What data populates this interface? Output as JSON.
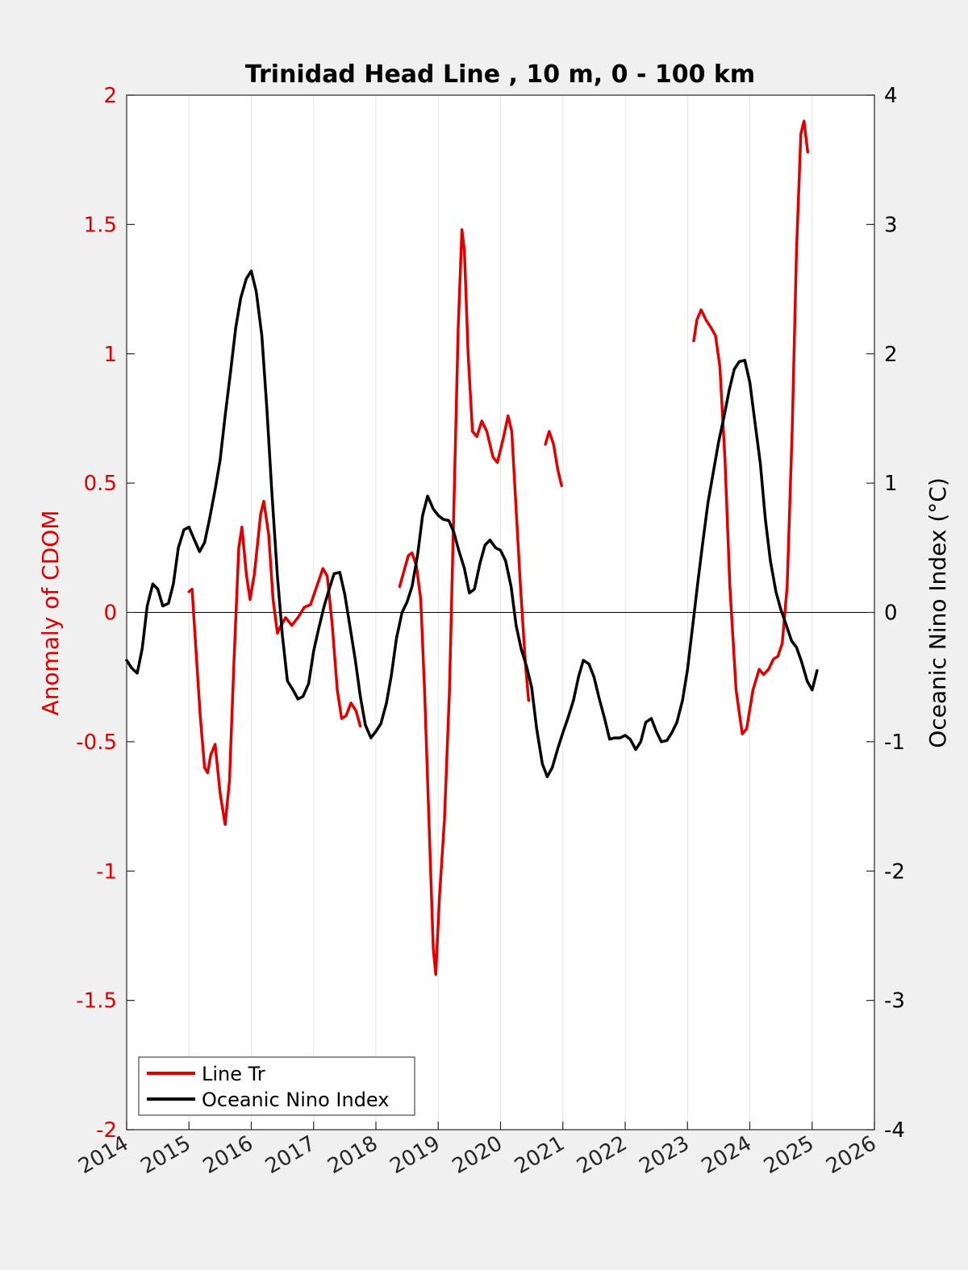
{
  "chart_data": {
    "type": "line",
    "title": "Trinidad Head Line , 10 m, 0 - 100 km",
    "xlabel": "",
    "xlim": [
      2014,
      2026
    ],
    "x_ticks": [
      "2014",
      "2015",
      "2016",
      "2017",
      "2018",
      "2019",
      "2020",
      "2021",
      "2022",
      "2023",
      "2024",
      "2025",
      "2026"
    ],
    "ylabel_left": "Anomaly of CDOM",
    "ylim_left": [
      -2,
      2
    ],
    "y_ticks_left": [
      "-2",
      "-1.5",
      "-1",
      "-0.5",
      "0",
      "0.5",
      "1",
      "1.5",
      "2"
    ],
    "ylabel_right": "Oceanic Nino Index (°C)",
    "ylim_right": [
      -4,
      4
    ],
    "y_ticks_right": [
      "-4",
      "-3",
      "-2",
      "-1",
      "0",
      "1",
      "2",
      "3",
      "4"
    ],
    "grid": "vertical gridlines at year ticks; horizontal zero line",
    "legend_position": "bottom-left",
    "colors": {
      "cdom": "#e00000",
      "oni": "#000000",
      "left_axis": "#e00000",
      "right_axis": "#000000",
      "background": "#f0f0f0",
      "plot_bg": "#ffffff"
    },
    "series": [
      {
        "name": "Line Tr",
        "axis": "left",
        "color": "#e00000",
        "segments": [
          [
            [
              2015.0,
              0.08
            ],
            [
              2015.05,
              0.09
            ],
            [
              2015.1,
              -0.1
            ],
            [
              2015.18,
              -0.4
            ],
            [
              2015.25,
              -0.6
            ],
            [
              2015.3,
              -0.62
            ],
            [
              2015.35,
              -0.55
            ],
            [
              2015.42,
              -0.51
            ],
            [
              2015.5,
              -0.7
            ],
            [
              2015.58,
              -0.82
            ],
            [
              2015.65,
              -0.65
            ],
            [
              2015.72,
              -0.2
            ],
            [
              2015.8,
              0.25
            ],
            [
              2015.85,
              0.33
            ],
            [
              2015.92,
              0.15
            ],
            [
              2015.98,
              0.05
            ],
            [
              2016.05,
              0.15
            ],
            [
              2016.15,
              0.38
            ],
            [
              2016.2,
              0.43
            ],
            [
              2016.28,
              0.3
            ],
            [
              2016.35,
              0.05
            ],
            [
              2016.42,
              -0.08
            ],
            [
              2016.48,
              -0.05
            ],
            [
              2016.55,
              -0.02
            ],
            [
              2016.65,
              -0.05
            ],
            [
              2016.75,
              -0.02
            ],
            [
              2016.85,
              0.02
            ],
            [
              2016.95,
              0.03
            ],
            [
              2017.05,
              0.1
            ],
            [
              2017.15,
              0.17
            ],
            [
              2017.22,
              0.14
            ],
            [
              2017.3,
              -0.05
            ],
            [
              2017.38,
              -0.3
            ],
            [
              2017.45,
              -0.41
            ],
            [
              2017.52,
              -0.4
            ],
            [
              2017.6,
              -0.35
            ],
            [
              2017.68,
              -0.38
            ],
            [
              2017.75,
              -0.44
            ]
          ],
          [
            [
              2018.38,
              0.1
            ],
            [
              2018.45,
              0.16
            ],
            [
              2018.52,
              0.22
            ],
            [
              2018.58,
              0.23
            ],
            [
              2018.65,
              0.18
            ],
            [
              2018.72,
              0.05
            ],
            [
              2018.78,
              -0.3
            ],
            [
              2018.85,
              -0.8
            ],
            [
              2018.92,
              -1.3
            ],
            [
              2018.96,
              -1.4
            ],
            [
              2019.02,
              -1.1
            ],
            [
              2019.1,
              -0.8
            ],
            [
              2019.18,
              -0.3
            ],
            [
              2019.25,
              0.4
            ],
            [
              2019.32,
              1.1
            ],
            [
              2019.38,
              1.48
            ],
            [
              2019.42,
              1.4
            ],
            [
              2019.48,
              1.0
            ],
            [
              2019.55,
              0.7
            ],
            [
              2019.62,
              0.68
            ],
            [
              2019.7,
              0.74
            ],
            [
              2019.78,
              0.7
            ],
            [
              2019.88,
              0.6
            ],
            [
              2019.95,
              0.58
            ],
            [
              2020.05,
              0.68
            ],
            [
              2020.12,
              0.76
            ],
            [
              2020.18,
              0.7
            ],
            [
              2020.25,
              0.4
            ],
            [
              2020.32,
              0.1
            ],
            [
              2020.4,
              -0.2
            ],
            [
              2020.45,
              -0.34
            ]
          ],
          [
            [
              2020.72,
              0.65
            ],
            [
              2020.78,
              0.7
            ],
            [
              2020.85,
              0.65
            ],
            [
              2020.92,
              0.55
            ],
            [
              2020.98,
              0.49
            ]
          ],
          [
            [
              2023.1,
              1.05
            ],
            [
              2023.15,
              1.13
            ],
            [
              2023.22,
              1.17
            ],
            [
              2023.3,
              1.13
            ],
            [
              2023.38,
              1.1
            ],
            [
              2023.45,
              1.07
            ],
            [
              2023.52,
              0.95
            ],
            [
              2023.6,
              0.6
            ],
            [
              2023.68,
              0.1
            ],
            [
              2023.78,
              -0.3
            ],
            [
              2023.88,
              -0.47
            ],
            [
              2023.95,
              -0.45
            ],
            [
              2024.05,
              -0.3
            ],
            [
              2024.15,
              -0.22
            ],
            [
              2024.22,
              -0.24
            ],
            [
              2024.3,
              -0.22
            ],
            [
              2024.38,
              -0.18
            ],
            [
              2024.45,
              -0.17
            ],
            [
              2024.52,
              -0.12
            ],
            [
              2024.6,
              0.1
            ],
            [
              2024.68,
              0.7
            ],
            [
              2024.75,
              1.4
            ],
            [
              2024.82,
              1.85
            ],
            [
              2024.87,
              1.9
            ],
            [
              2024.93,
              1.78
            ]
          ]
        ]
      },
      {
        "name": "Oceanic Nino Index",
        "axis": "right",
        "color": "#000000",
        "segments": [
          [
            [
              2014.0,
              -0.37
            ],
            [
              2014.08,
              -0.43
            ],
            [
              2014.17,
              -0.47
            ],
            [
              2014.25,
              -0.28
            ],
            [
              2014.33,
              0.05
            ],
            [
              2014.42,
              0.22
            ],
            [
              2014.5,
              0.18
            ],
            [
              2014.58,
              0.05
            ],
            [
              2014.67,
              0.07
            ],
            [
              2014.75,
              0.22
            ],
            [
              2014.83,
              0.5
            ],
            [
              2014.92,
              0.64
            ],
            [
              2015.0,
              0.66
            ],
            [
              2015.08,
              0.57
            ],
            [
              2015.17,
              0.47
            ],
            [
              2015.25,
              0.54
            ],
            [
              2015.33,
              0.72
            ],
            [
              2015.42,
              0.95
            ],
            [
              2015.5,
              1.18
            ],
            [
              2015.58,
              1.52
            ],
            [
              2015.67,
              1.87
            ],
            [
              2015.75,
              2.2
            ],
            [
              2015.83,
              2.43
            ],
            [
              2015.92,
              2.58
            ],
            [
              2016.0,
              2.64
            ],
            [
              2016.08,
              2.48
            ],
            [
              2016.17,
              2.14
            ],
            [
              2016.25,
              1.58
            ],
            [
              2016.33,
              0.93
            ],
            [
              2016.42,
              0.28
            ],
            [
              2016.5,
              -0.18
            ],
            [
              2016.58,
              -0.53
            ],
            [
              2016.67,
              -0.6
            ],
            [
              2016.75,
              -0.67
            ],
            [
              2016.83,
              -0.65
            ],
            [
              2016.92,
              -0.55
            ],
            [
              2017.0,
              -0.3
            ],
            [
              2017.08,
              -0.13
            ],
            [
              2017.17,
              0.05
            ],
            [
              2017.25,
              0.18
            ],
            [
              2017.33,
              0.3
            ],
            [
              2017.42,
              0.31
            ],
            [
              2017.5,
              0.14
            ],
            [
              2017.58,
              -0.1
            ],
            [
              2017.67,
              -0.37
            ],
            [
              2017.75,
              -0.65
            ],
            [
              2017.83,
              -0.87
            ],
            [
              2017.92,
              -0.97
            ],
            [
              2018.0,
              -0.92
            ],
            [
              2018.08,
              -0.86
            ],
            [
              2018.17,
              -0.7
            ],
            [
              2018.25,
              -0.48
            ],
            [
              2018.33,
              -0.2
            ],
            [
              2018.42,
              0.0
            ],
            [
              2018.5,
              0.08
            ],
            [
              2018.58,
              0.2
            ],
            [
              2018.67,
              0.45
            ],
            [
              2018.75,
              0.75
            ],
            [
              2018.83,
              0.9
            ],
            [
              2018.92,
              0.8
            ],
            [
              2019.0,
              0.75
            ],
            [
              2019.08,
              0.72
            ],
            [
              2019.17,
              0.71
            ],
            [
              2019.25,
              0.62
            ],
            [
              2019.33,
              0.48
            ],
            [
              2019.42,
              0.34
            ],
            [
              2019.5,
              0.15
            ],
            [
              2019.58,
              0.18
            ],
            [
              2019.67,
              0.38
            ],
            [
              2019.75,
              0.52
            ],
            [
              2019.83,
              0.56
            ],
            [
              2019.92,
              0.5
            ],
            [
              2020.0,
              0.48
            ],
            [
              2020.08,
              0.4
            ],
            [
              2020.17,
              0.2
            ],
            [
              2020.25,
              -0.1
            ],
            [
              2020.33,
              -0.28
            ],
            [
              2020.42,
              -0.42
            ],
            [
              2020.5,
              -0.58
            ],
            [
              2020.58,
              -0.9
            ],
            [
              2020.67,
              -1.17
            ],
            [
              2020.75,
              -1.27
            ],
            [
              2020.83,
              -1.2
            ],
            [
              2020.92,
              -1.05
            ],
            [
              2021.0,
              -0.93
            ],
            [
              2021.08,
              -0.82
            ],
            [
              2021.17,
              -0.68
            ],
            [
              2021.25,
              -0.5
            ],
            [
              2021.33,
              -0.37
            ],
            [
              2021.42,
              -0.4
            ],
            [
              2021.5,
              -0.5
            ],
            [
              2021.58,
              -0.66
            ],
            [
              2021.67,
              -0.82
            ],
            [
              2021.75,
              -0.98
            ],
            [
              2021.83,
              -0.97
            ],
            [
              2021.92,
              -0.97
            ],
            [
              2022.0,
              -0.95
            ],
            [
              2022.08,
              -0.98
            ],
            [
              2022.17,
              -1.06
            ],
            [
              2022.25,
              -1.0
            ],
            [
              2022.33,
              -0.85
            ],
            [
              2022.42,
              -0.82
            ],
            [
              2022.5,
              -0.92
            ],
            [
              2022.58,
              -1.0
            ],
            [
              2022.67,
              -0.99
            ],
            [
              2022.75,
              -0.93
            ],
            [
              2022.83,
              -0.85
            ],
            [
              2022.92,
              -0.68
            ],
            [
              2023.0,
              -0.44
            ],
            [
              2023.08,
              -0.12
            ],
            [
              2023.17,
              0.25
            ],
            [
              2023.25,
              0.56
            ],
            [
              2023.33,
              0.85
            ],
            [
              2023.42,
              1.1
            ],
            [
              2023.5,
              1.32
            ],
            [
              2023.58,
              1.5
            ],
            [
              2023.67,
              1.72
            ],
            [
              2023.75,
              1.88
            ],
            [
              2023.83,
              1.94
            ],
            [
              2023.92,
              1.95
            ],
            [
              2024.0,
              1.78
            ],
            [
              2024.08,
              1.48
            ],
            [
              2024.17,
              1.15
            ],
            [
              2024.25,
              0.72
            ],
            [
              2024.33,
              0.4
            ],
            [
              2024.42,
              0.16
            ],
            [
              2024.5,
              0.02
            ],
            [
              2024.58,
              -0.09
            ],
            [
              2024.67,
              -0.22
            ],
            [
              2024.75,
              -0.27
            ],
            [
              2024.83,
              -0.38
            ],
            [
              2024.92,
              -0.53
            ],
            [
              2025.0,
              -0.6
            ],
            [
              2025.08,
              -0.45
            ]
          ]
        ]
      }
    ]
  }
}
